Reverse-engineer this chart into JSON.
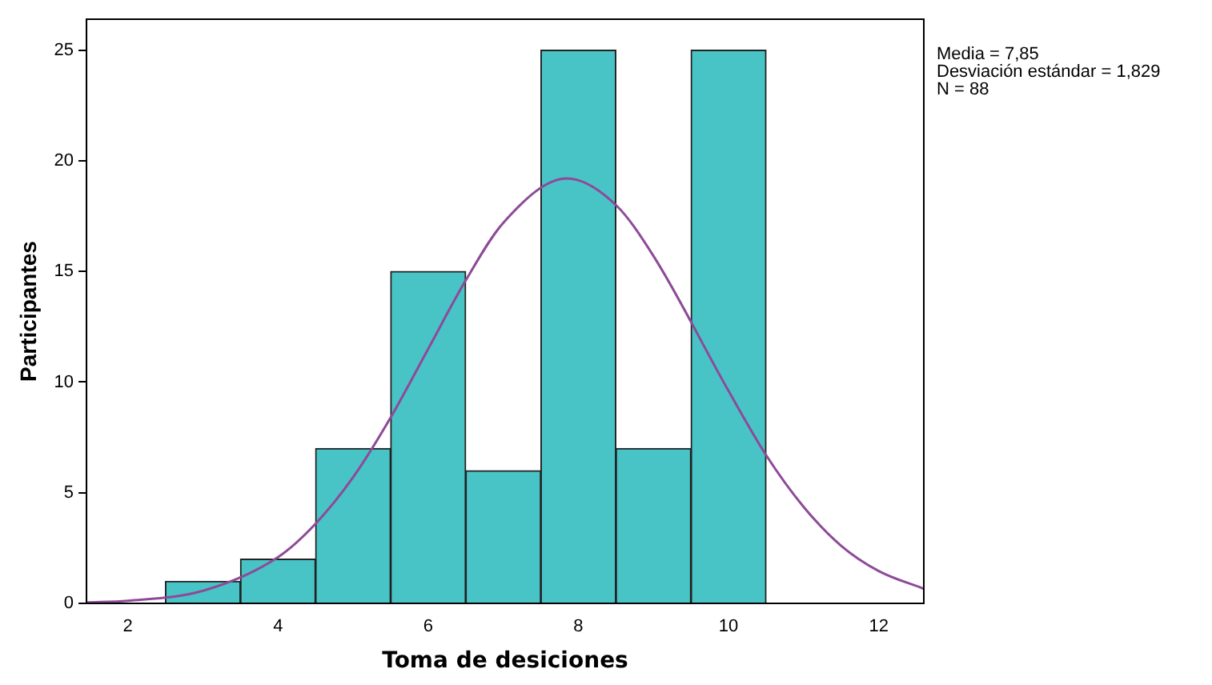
{
  "chart_data": {
    "type": "histogram",
    "xlabel": "Toma de desiciones",
    "ylabel": "Participantes",
    "xlim": [
      1.45,
      12.6
    ],
    "xticks": [
      2,
      4,
      6,
      8,
      10,
      12
    ],
    "ylim": [
      0,
      26.4
    ],
    "yticks": [
      0,
      5,
      10,
      15,
      20,
      25
    ],
    "grid": false,
    "legend": false,
    "series": [
      {
        "color": "#48c4c6",
        "bins": [
          2.5,
          3.5,
          4.5,
          5.5,
          6.5,
          7.5,
          8.5,
          9.5,
          10.5
        ],
        "values": [
          1,
          2,
          7,
          15,
          6,
          25,
          7,
          25
        ]
      },
      {
        "type": "line",
        "color": "#8e4a98",
        "x": [
          1.45,
          2,
          3,
          4,
          4.5,
          5,
          5.5,
          6,
          6.5,
          7,
          7.85,
          8.5,
          9,
          10,
          10.5,
          11,
          11.5,
          12,
          12.6
        ],
        "values": [
          0.04,
          0.12,
          0.57,
          2.09,
          3.6,
          5.7,
          8.4,
          11.5,
          14.6,
          17.2,
          19.2,
          18.0,
          15.7,
          9.6,
          6.7,
          4.36,
          2.6,
          1.46,
          0.66
        ]
      }
    ],
    "annotations": [
      "Media = 7,85",
      "Desviación estándar = 1,829",
      "N = 88"
    ]
  }
}
